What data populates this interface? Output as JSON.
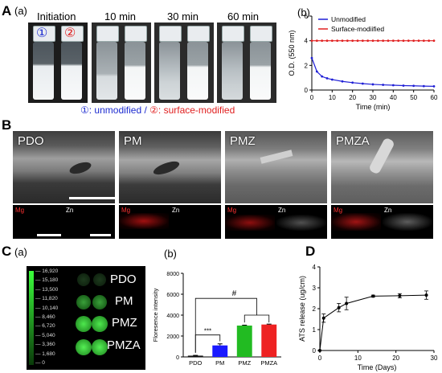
{
  "panel_labels": {
    "A": "A",
    "B": "B",
    "C": "C",
    "D": "D"
  },
  "panelA": {
    "sub_a": "(a)",
    "sub_b": "(b)",
    "time_titles": [
      "Initiation",
      "10 min",
      "30 min",
      "60 min"
    ],
    "vial_marks": [
      "①",
      "②"
    ],
    "legend_note": {
      "mark1": "①",
      "text1": ": unmodified / ",
      "mark2": "②",
      "text2": ": surface-modified"
    }
  },
  "panelB": {
    "images": [
      "PDO",
      "PM",
      "PMZ",
      "PMZA"
    ],
    "map_labels": {
      "mg": "Mg",
      "zn": "Zn"
    }
  },
  "panelC": {
    "sub_a": "(a)",
    "sub_b": "(b)",
    "plate_rows": [
      "PDO",
      "PM",
      "PMZ",
      "PMZA"
    ],
    "colorbar_ticks": [
      "16,920",
      "15,180",
      "13,500",
      "11,820",
      "10,140",
      "8,460",
      "6,720",
      "5,040",
      "3,360",
      "1,680",
      "0"
    ]
  },
  "chart_data": [
    {
      "type": "line",
      "panel": "A(b)",
      "xlabel": "Time (min)",
      "ylabel": "O.D. (550 nm)",
      "xlim": [
        0,
        60
      ],
      "ylim": [
        0,
        6
      ],
      "xticks": [
        0,
        10,
        20,
        30,
        40,
        50,
        60
      ],
      "yticks": [
        0,
        2,
        4,
        6
      ],
      "legend_position": "top-right",
      "series": [
        {
          "name": "Unmodified",
          "color": "#1f1fd6",
          "x": [
            0,
            2.5,
            5,
            7.5,
            10,
            15,
            20,
            25,
            30,
            35,
            40,
            45,
            50,
            55,
            60
          ],
          "y": [
            2.6,
            1.5,
            1.1,
            0.95,
            0.85,
            0.7,
            0.6,
            0.52,
            0.46,
            0.42,
            0.39,
            0.36,
            0.34,
            0.32,
            0.3
          ]
        },
        {
          "name": "Surface-modiified",
          "color": "#e02020",
          "x": [
            0,
            2.5,
            5,
            7.5,
            10,
            12.5,
            15,
            17.5,
            20,
            22.5,
            25,
            27.5,
            30,
            32.5,
            35,
            37.5,
            40,
            42.5,
            45,
            47.5,
            50,
            52.5,
            55,
            57.5,
            60
          ],
          "y": [
            4,
            4,
            4,
            4,
            4,
            4,
            4,
            4,
            4,
            4,
            4,
            4,
            4,
            4,
            4,
            4,
            4,
            4,
            4,
            4,
            4,
            4,
            4,
            4,
            4
          ]
        }
      ]
    },
    {
      "type": "bar",
      "panel": "C(b)",
      "ylabel": "Floresence intensity",
      "ylim": [
        0,
        8000
      ],
      "yticks": [
        0,
        2000,
        4000,
        6000,
        8000
      ],
      "categories": [
        "PDO",
        "PM",
        "PMZ",
        "PMZA"
      ],
      "values": [
        120,
        1100,
        3000,
        3100
      ],
      "errors": [
        30,
        150,
        40,
        40
      ],
      "colors": [
        "#111111",
        "#1a1aff",
        "#22bb22",
        "#ee2222"
      ],
      "annotations": [
        "***",
        "#"
      ]
    },
    {
      "type": "line",
      "panel": "D",
      "xlabel": "Time (Days)",
      "ylabel": "ATS release (ug/cm)",
      "xlim": [
        0,
        30
      ],
      "ylim": [
        0,
        4
      ],
      "xticks": [
        0,
        10,
        20,
        30
      ],
      "yticks": [
        0,
        1,
        2,
        3,
        4
      ],
      "series": [
        {
          "name": "",
          "x": [
            0,
            1,
            5,
            7,
            14,
            21,
            28
          ],
          "y": [
            0,
            1.55,
            2.05,
            2.25,
            2.6,
            2.62,
            2.65
          ],
          "errors": [
            0,
            0.2,
            0.2,
            0.3,
            0.05,
            0.1,
            0.2
          ]
        }
      ]
    }
  ]
}
